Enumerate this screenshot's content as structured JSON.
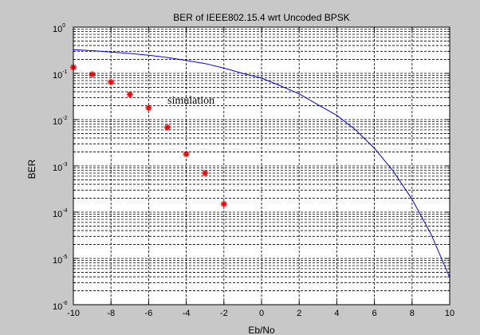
{
  "chart_data": {
    "type": "line",
    "title": "BER of IEEE802.15.4 wrt Uncoded BPSK",
    "xlabel": "Eb/No",
    "ylabel": "BER",
    "xlim": [
      -10,
      10
    ],
    "ylim": [
      1e-06,
      1
    ],
    "y_scale": "log",
    "grid": true,
    "legend": "none",
    "x_ticks": [
      -10,
      -8,
      -6,
      -4,
      -2,
      0,
      2,
      4,
      6,
      8,
      10
    ],
    "y_ticks": [
      {
        "base": "10",
        "exp": "0"
      },
      {
        "base": "10",
        "exp": "-1"
      },
      {
        "base": "10",
        "exp": "-2"
      },
      {
        "base": "10",
        "exp": "-3"
      },
      {
        "base": "10",
        "exp": "-4"
      },
      {
        "base": "10",
        "exp": "-5"
      },
      {
        "base": "10",
        "exp": "-6"
      }
    ],
    "annotation": {
      "text": "simulation",
      "x": -5,
      "y": 0.022
    },
    "series": [
      {
        "kind": "markers",
        "marker": "*",
        "color": "#ff0000",
        "x": [
          -10,
          -9,
          -8,
          -7,
          -6,
          -5,
          -4,
          -3,
          -2
        ],
        "y": [
          0.135,
          0.095,
          0.065,
          0.035,
          0.018,
          0.0068,
          0.0018,
          0.0007,
          0.00015
        ]
      },
      {
        "kind": "line",
        "color": "#0000ff",
        "x": [
          -10,
          -9,
          -8,
          -7,
          -6,
          -5,
          -4,
          -3,
          -2,
          -1,
          0,
          1,
          2,
          3,
          4,
          5,
          6,
          7,
          8,
          9,
          10
        ],
        "y": [
          0.327,
          0.31,
          0.29,
          0.27,
          0.247,
          0.22,
          0.19,
          0.163,
          0.13,
          0.1,
          0.079,
          0.054,
          0.036,
          0.021,
          0.0124,
          0.006,
          0.0024,
          0.00077,
          0.00019,
          3.4e-05,
          3.9e-06
        ]
      }
    ]
  }
}
